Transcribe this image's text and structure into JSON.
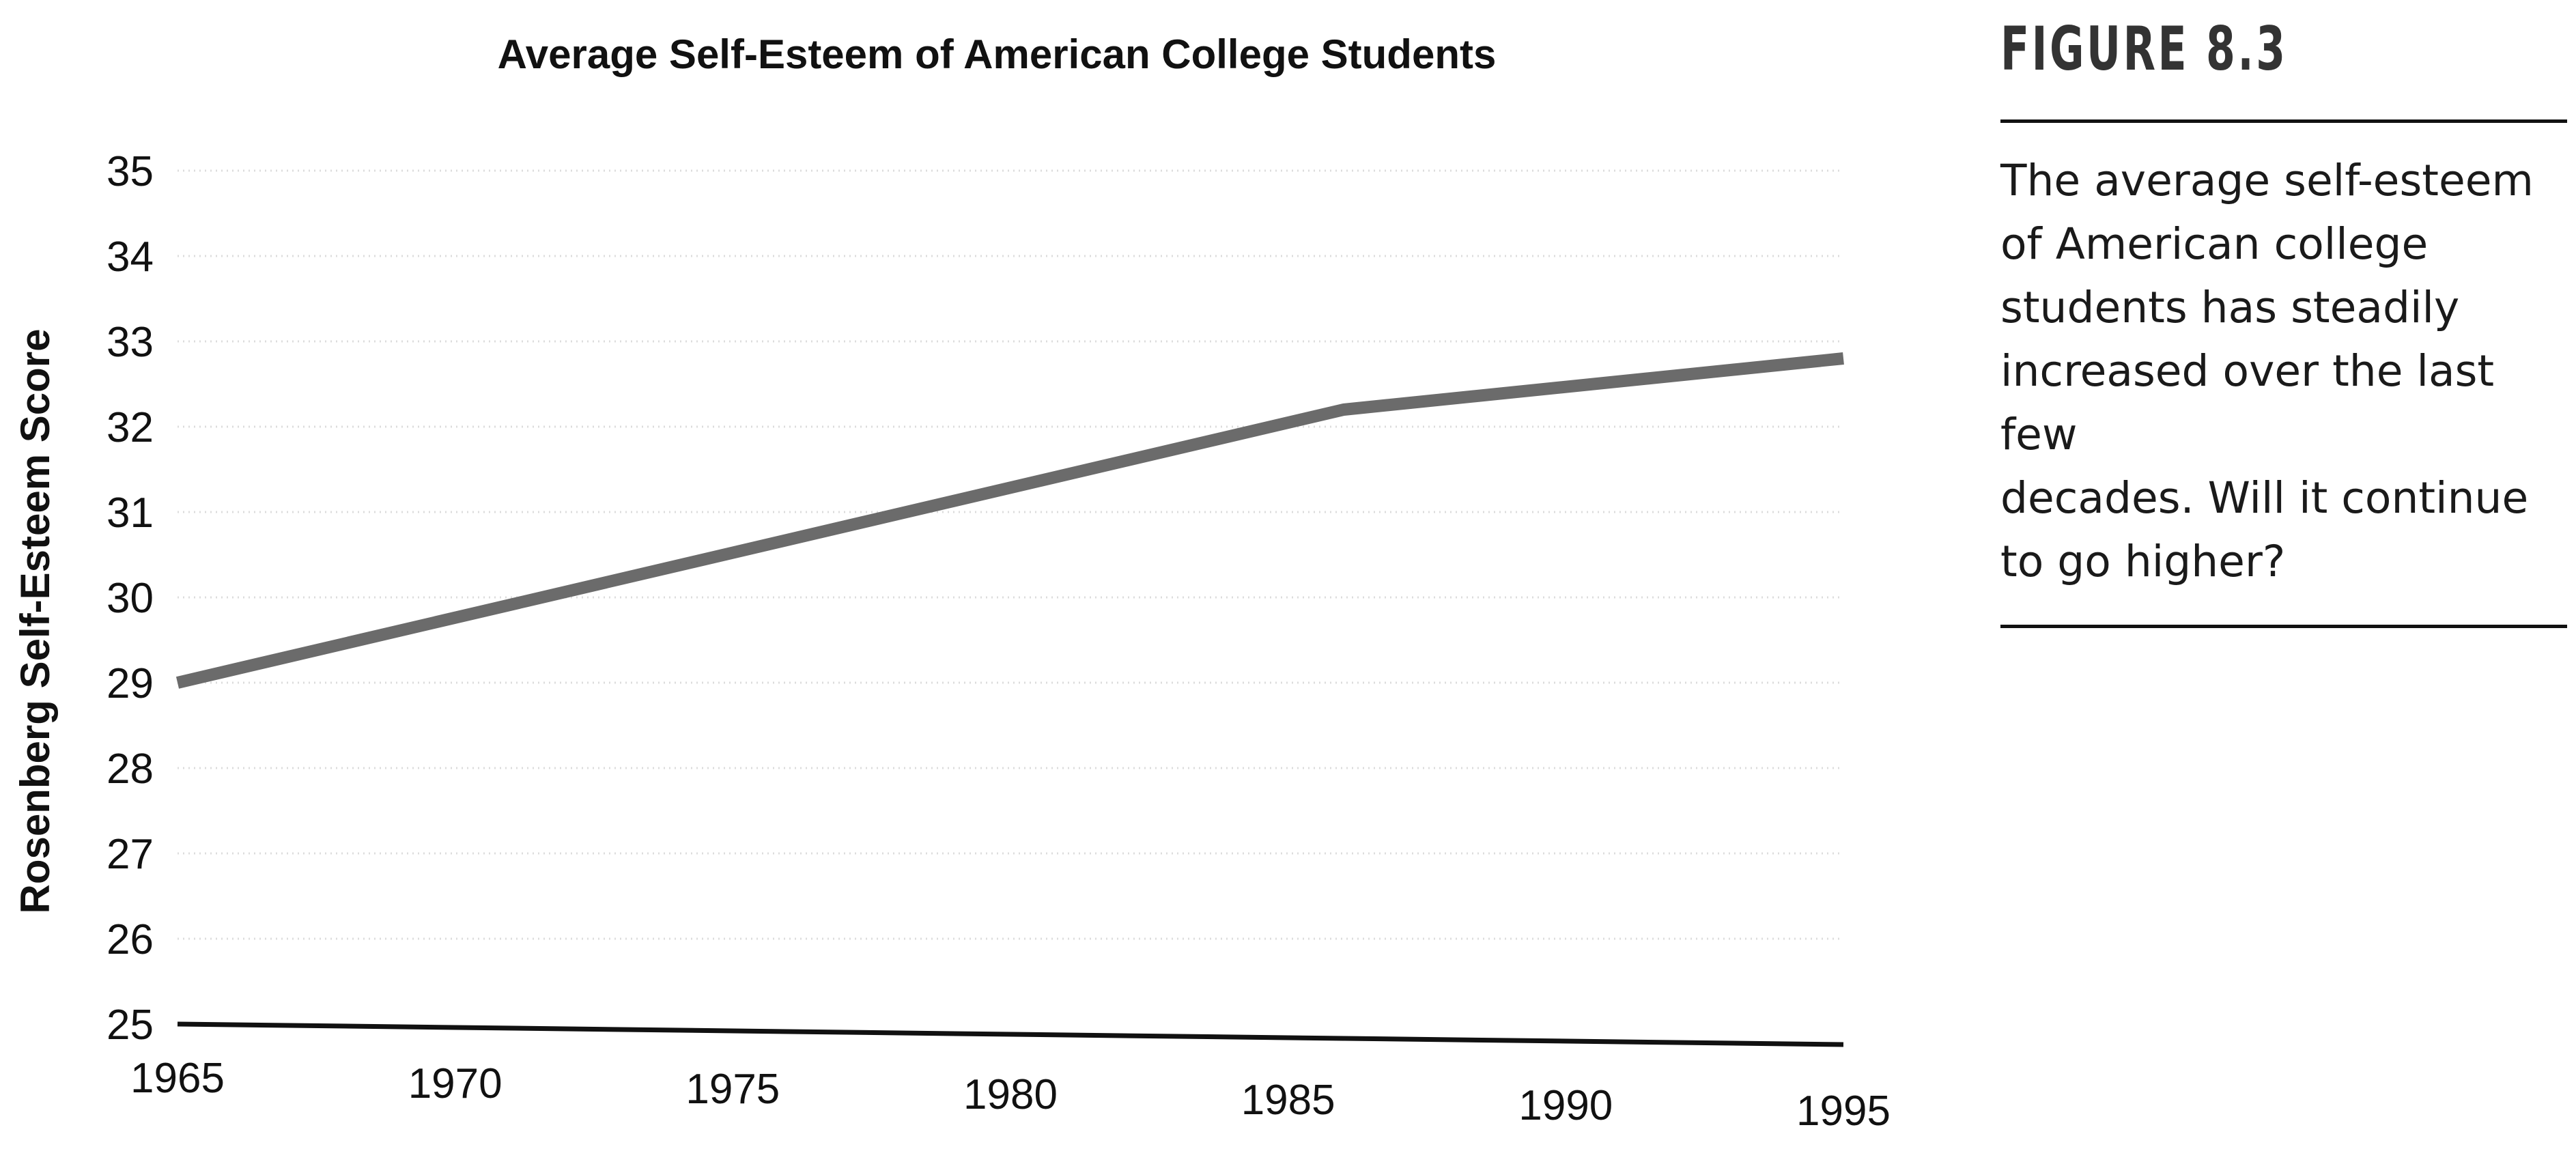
{
  "chart_data": {
    "type": "line",
    "title": "Average Self-Esteem of American College Students",
    "xlabel": "",
    "ylabel": "Rosenberg Self-Esteem Score",
    "x": [
      1965,
      1986,
      1995
    ],
    "series": [
      {
        "values": [
          29.0,
          32.2,
          32.8
        ]
      }
    ],
    "xticks": [
      "1965",
      "1970",
      "1975",
      "1980",
      "1985",
      "1990",
      "1995"
    ],
    "yticks": [
      "25",
      "26",
      "27",
      "28",
      "29",
      "30",
      "31",
      "32",
      "33",
      "34",
      "35"
    ],
    "xlim": [
      1965,
      1995
    ],
    "ylim": [
      25,
      35
    ],
    "grid": true,
    "line_color": "#6b6b6b"
  },
  "sidebar": {
    "figure_label": "FIGURE 8.3",
    "caption": "The average self-esteem\nof American college\nstudents has steadily\nincreased over the last few\ndecades. Will it continue\nto go higher?"
  }
}
